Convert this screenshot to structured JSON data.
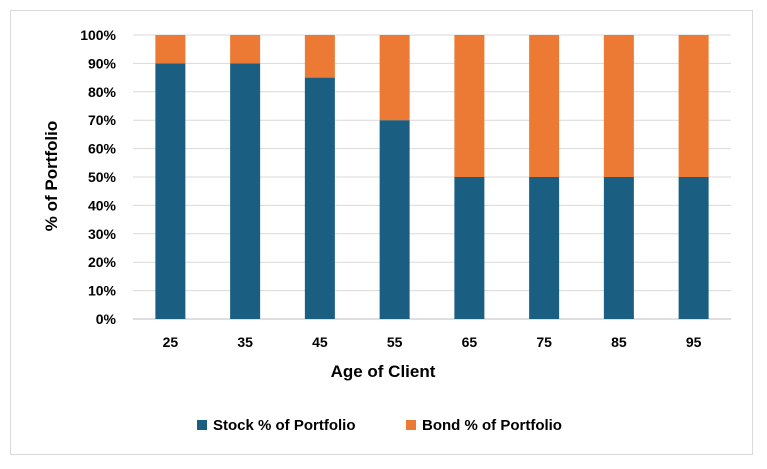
{
  "chart_data": {
    "type": "bar",
    "stacked": true,
    "title": "",
    "xlabel": "Age of Client",
    "ylabel": "% of Portfolio",
    "categories": [
      "25",
      "35",
      "45",
      "55",
      "65",
      "75",
      "85",
      "95"
    ],
    "series": [
      {
        "name": "Stock % of Portfolio",
        "color": "#1a5e82",
        "values": [
          90,
          90,
          85,
          70,
          50,
          50,
          50,
          50
        ]
      },
      {
        "name": "Bond % of Portfolio",
        "color": "#ec7a34",
        "values": [
          10,
          10,
          15,
          30,
          50,
          50,
          50,
          50
        ]
      }
    ],
    "ylim": [
      0,
      100
    ],
    "yticks": [
      "0%",
      "10%",
      "20%",
      "30%",
      "40%",
      "50%",
      "60%",
      "70%",
      "80%",
      "90%",
      "100%"
    ],
    "grid": true,
    "legend_position": "bottom"
  }
}
